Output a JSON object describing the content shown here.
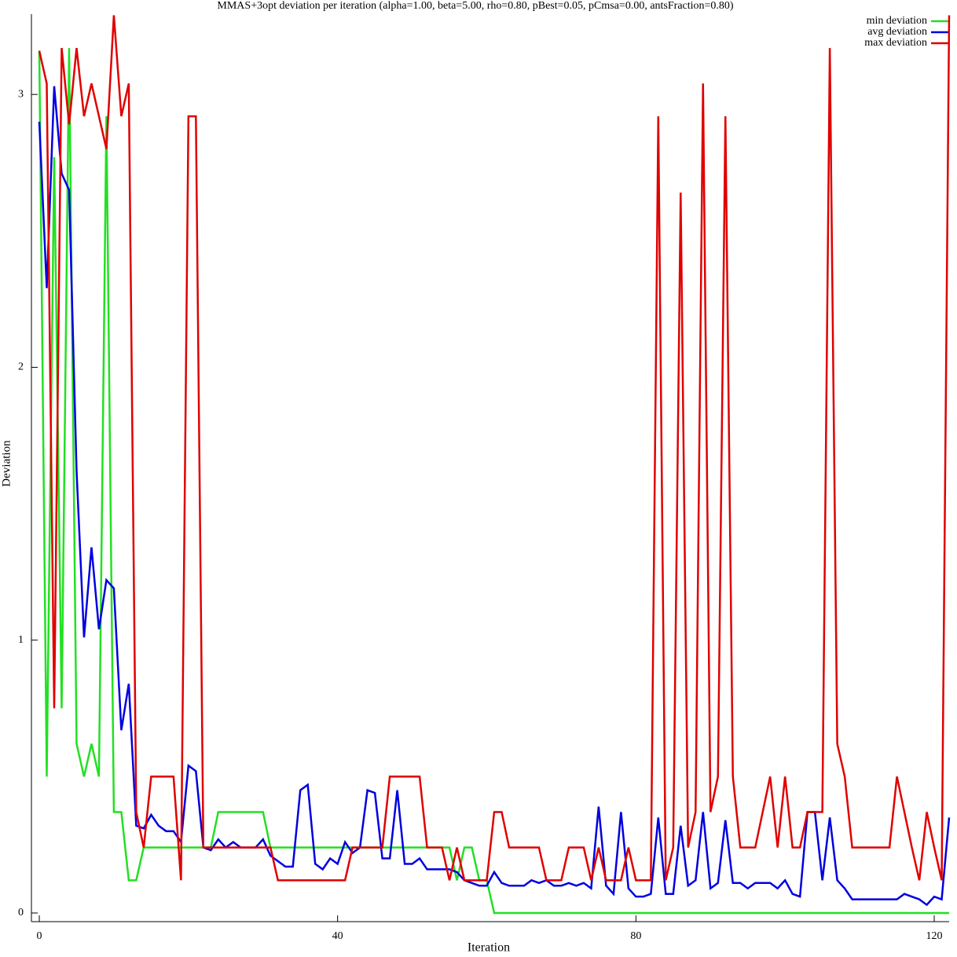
{
  "chart_data": {
    "type": "line",
    "title": "MMAS+3opt deviation per iteration (alpha=1.00, beta=5.00, rho=0.80, pBest=0.05, pCmsa=0.00, antsFraction=0.80)",
    "x_label": "Iteration",
    "y_label": "Deviation",
    "xlim": [
      0,
      122
    ],
    "ylim": [
      0,
      3.3
    ],
    "xticks": [
      0,
      40,
      80,
      120
    ],
    "yticks": [
      0,
      1,
      2,
      3
    ],
    "legend": "top-right",
    "x": [
      0,
      1,
      2,
      3,
      4,
      5,
      6,
      7,
      8,
      9,
      10,
      11,
      12,
      13,
      14,
      15,
      16,
      17,
      18,
      19,
      20,
      21,
      22,
      23,
      24,
      25,
      26,
      27,
      28,
      29,
      30,
      31,
      32,
      33,
      34,
      35,
      36,
      37,
      38,
      39,
      40,
      41,
      42,
      43,
      44,
      45,
      46,
      47,
      48,
      49,
      50,
      51,
      52,
      53,
      54,
      55,
      56,
      57,
      58,
      59,
      60,
      61,
      62,
      63,
      64,
      65,
      66,
      67,
      68,
      69,
      70,
      71,
      72,
      73,
      74,
      75,
      76,
      77,
      78,
      79,
      80,
      81,
      82,
      83,
      84,
      85,
      86,
      87,
      88,
      89,
      90,
      91,
      92,
      93,
      94,
      95,
      96,
      97,
      98,
      99,
      100,
      101,
      102,
      103,
      104,
      105,
      106,
      107,
      108,
      109,
      110,
      111,
      112,
      113,
      114,
      115,
      116,
      117,
      118,
      119,
      120,
      121,
      122
    ],
    "series": [
      {
        "name": "min deviation",
        "color": "#22e022",
        "values": [
          3.16,
          0.5,
          2.77,
          0.75,
          3.17,
          0.62,
          0.5,
          0.62,
          0.5,
          2.92,
          0.37,
          0.37,
          0.12,
          0.12,
          0.24,
          0.24,
          0.24,
          0.24,
          0.24,
          0.24,
          0.24,
          0.24,
          0.24,
          0.24,
          0.37,
          0.37,
          0.37,
          0.37,
          0.37,
          0.37,
          0.37,
          0.24,
          0.24,
          0.24,
          0.24,
          0.24,
          0.24,
          0.24,
          0.24,
          0.24,
          0.24,
          0.24,
          0.24,
          0.24,
          0.24,
          0.24,
          0.24,
          0.24,
          0.24,
          0.24,
          0.24,
          0.24,
          0.24,
          0.24,
          0.24,
          0.24,
          0.12,
          0.24,
          0.24,
          0.12,
          0.12,
          0,
          0,
          0,
          0,
          0,
          0,
          0,
          0,
          0,
          0,
          0,
          0,
          0,
          0,
          0,
          0,
          0,
          0,
          0,
          0,
          0,
          0,
          0,
          0,
          0,
          0,
          0,
          0,
          0,
          0,
          0,
          0,
          0,
          0,
          0,
          0,
          0,
          0,
          0,
          0,
          0,
          0,
          0,
          0,
          0,
          0,
          0,
          0,
          0,
          0,
          0,
          0,
          0,
          0,
          0,
          0,
          0,
          0,
          0,
          0,
          0,
          0
        ]
      },
      {
        "name": "avg deviation",
        "color": "#0000e0",
        "values": [
          2.9,
          2.29,
          3.03,
          2.71,
          2.65,
          1.62,
          1.01,
          1.34,
          1.04,
          1.22,
          1.19,
          0.67,
          0.84,
          0.32,
          0.31,
          0.36,
          0.32,
          0.3,
          0.3,
          0.26,
          0.54,
          0.52,
          0.24,
          0.23,
          0.27,
          0.24,
          0.26,
          0.24,
          0.24,
          0.24,
          0.27,
          0.21,
          0.19,
          0.17,
          0.17,
          0.45,
          0.47,
          0.18,
          0.16,
          0.2,
          0.18,
          0.26,
          0.22,
          0.24,
          0.45,
          0.44,
          0.2,
          0.2,
          0.45,
          0.18,
          0.18,
          0.2,
          0.16,
          0.16,
          0.16,
          0.16,
          0.15,
          0.12,
          0.11,
          0.1,
          0.1,
          0.15,
          0.11,
          0.1,
          0.1,
          0.1,
          0.12,
          0.11,
          0.12,
          0.1,
          0.1,
          0.11,
          0.1,
          0.11,
          0.09,
          0.39,
          0.1,
          0.07,
          0.37,
          0.09,
          0.06,
          0.06,
          0.07,
          0.35,
          0.07,
          0.07,
          0.32,
          0.1,
          0.12,
          0.37,
          0.09,
          0.11,
          0.34,
          0.11,
          0.11,
          0.09,
          0.11,
          0.11,
          0.11,
          0.09,
          0.12,
          0.07,
          0.06,
          0.37,
          0.37,
          0.12,
          0.35,
          0.12,
          0.09,
          0.05,
          0.05,
          0.05,
          0.05,
          0.05,
          0.05,
          0.05,
          0.07,
          0.06,
          0.05,
          0.03,
          0.06,
          0.05,
          0.35
        ]
      },
      {
        "name": "max deviation",
        "color": "#e00000",
        "values": [
          3.16,
          3.04,
          0.75,
          3.17,
          2.89,
          3.17,
          2.92,
          3.04,
          2.92,
          2.8,
          3.29,
          2.92,
          3.04,
          0.37,
          0.24,
          0.5,
          0.5,
          0.5,
          0.5,
          0.12,
          2.92,
          2.92,
          0.24,
          0.24,
          0.24,
          0.24,
          0.24,
          0.24,
          0.24,
          0.24,
          0.24,
          0.24,
          0.12,
          0.12,
          0.12,
          0.12,
          0.12,
          0.12,
          0.12,
          0.12,
          0.12,
          0.12,
          0.24,
          0.24,
          0.24,
          0.24,
          0.24,
          0.5,
          0.5,
          0.5,
          0.5,
          0.5,
          0.24,
          0.24,
          0.24,
          0.12,
          0.24,
          0.12,
          0.12,
          0.12,
          0.12,
          0.37,
          0.37,
          0.24,
          0.24,
          0.24,
          0.24,
          0.24,
          0.12,
          0.12,
          0.12,
          0.24,
          0.24,
          0.24,
          0.12,
          0.24,
          0.12,
          0.12,
          0.12,
          0.24,
          0.12,
          0.12,
          0.12,
          2.92,
          0.12,
          0.24,
          2.64,
          0.24,
          0.37,
          3.04,
          0.37,
          0.5,
          2.92,
          0.5,
          0.24,
          0.24,
          0.24,
          0.37,
          0.5,
          0.24,
          0.5,
          0.24,
          0.24,
          0.37,
          0.37,
          0.37,
          3.17,
          0.62,
          0.5,
          0.24,
          0.24,
          0.24,
          0.24,
          0.24,
          0.24,
          0.5,
          0.37,
          0.24,
          0.12,
          0.37,
          0.24,
          0.12,
          3.29
        ]
      }
    ]
  }
}
